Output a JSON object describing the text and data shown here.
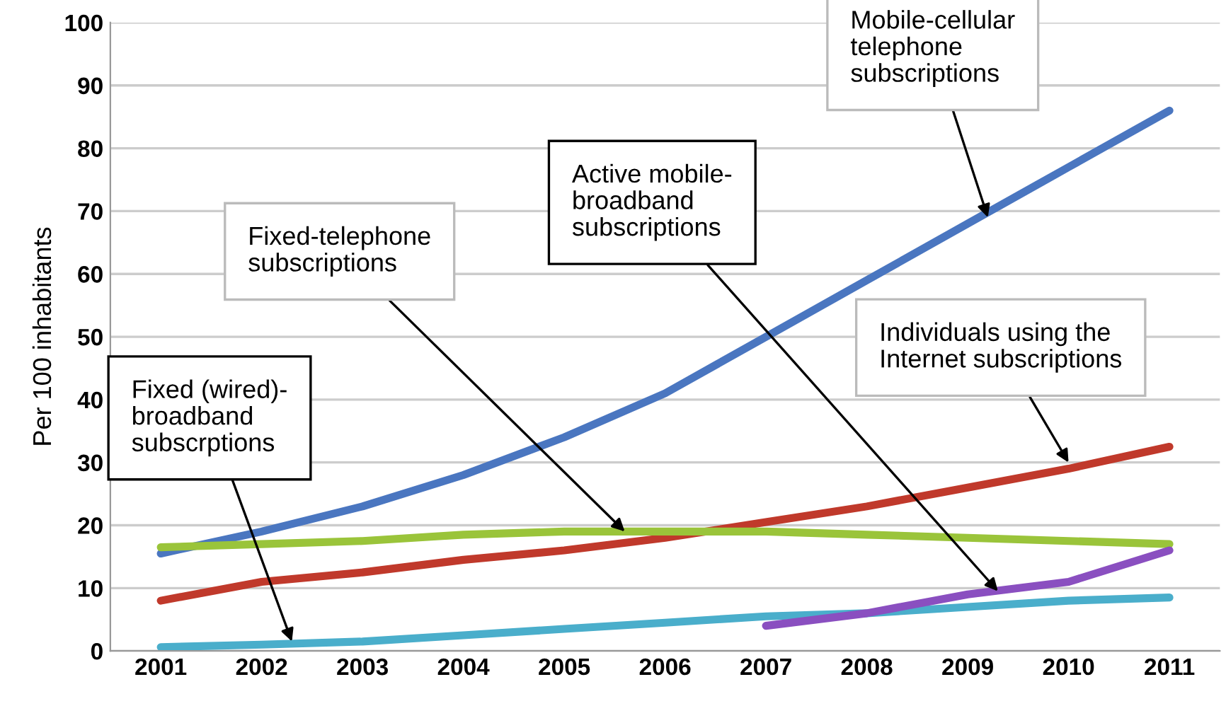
{
  "chart_data": {
    "type": "line",
    "ylabel": "Per 100 inhabitants",
    "x": [
      2001,
      2002,
      2003,
      2004,
      2005,
      2006,
      2007,
      2008,
      2009,
      2010,
      2011
    ],
    "series": [
      {
        "color": "#4a76c0",
        "values": [
          15.5,
          19,
          23,
          28,
          34,
          41,
          50,
          59,
          68,
          77,
          86
        ]
      },
      {
        "color": "#c0392b",
        "values": [
          8,
          11,
          12.5,
          14.5,
          16,
          18,
          20.5,
          23,
          26,
          29,
          32.5
        ]
      },
      {
        "color": "#9ac43a",
        "values": [
          16.5,
          17,
          17.5,
          18.5,
          19,
          19,
          19,
          18.5,
          18,
          17.5,
          17
        ]
      },
      {
        "color": "#4aaecb",
        "values": [
          0.6,
          1,
          1.5,
          2.5,
          3.5,
          4.5,
          5.5,
          6,
          7,
          8,
          8.5
        ]
      },
      {
        "color": "#8a4fc0",
        "values": [
          null,
          null,
          null,
          null,
          null,
          null,
          4,
          6,
          9,
          11,
          16
        ]
      }
    ],
    "xlim": [
      2000.5,
      2011.5
    ],
    "xticks": [
      2001,
      2002,
      2003,
      2004,
      2005,
      2006,
      2007,
      2008,
      2009,
      2010,
      2011
    ],
    "ylim": [
      0,
      100
    ],
    "yticks": [
      0,
      10,
      20,
      30,
      40,
      50,
      60,
      70,
      80,
      90,
      100
    ],
    "grid": "y",
    "legend": false,
    "marker": "none",
    "line_style": "solid",
    "annotations": [
      {
        "text": "Mobile-cellular\ntelephone\nsubscriptions",
        "x": 2009.2,
        "y": 69
      },
      {
        "text": "Fixed-telephone\nsubscriptions",
        "x": 2005.6,
        "y": 19
      },
      {
        "text": "Active mobile-\nbroadband\nsubscriptions",
        "x": 2009.3,
        "y": 9.5
      },
      {
        "text": "Individuals using the\nInternet subscriptions",
        "x": 2010,
        "y": 30
      },
      {
        "text": "Fixed (wired)-\nbroadband\nsubscrptions",
        "x": 2002.3,
        "y": 1.5
      }
    ]
  }
}
